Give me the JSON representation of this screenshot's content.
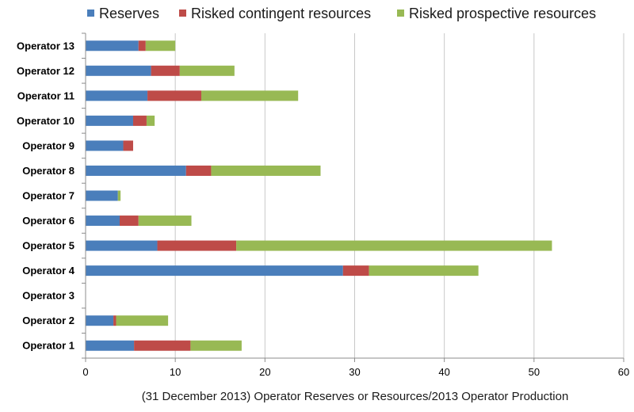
{
  "chart_data": {
    "type": "bar",
    "orientation": "horizontal",
    "stacked": true,
    "title": "",
    "xlabel": "(31 December 2013) Operator Reserves or Resources/2013 Operator Production",
    "ylabel": "",
    "xlim": [
      0,
      60
    ],
    "xticks": [
      0,
      10,
      20,
      30,
      40,
      50,
      60
    ],
    "grid": "vertical",
    "legend_position": "top",
    "categories": [
      "Operator 13",
      "Operator 12",
      "Operator 11",
      "Operator 10",
      "Operator 9",
      "Operator 8",
      "Operator 7",
      "Operator 6",
      "Operator 5",
      "Operator 4",
      "Operator 3",
      "Operator 2",
      "Operator 1"
    ],
    "series": [
      {
        "name": "Reserves",
        "color": "#4a7ebb",
        "values": [
          5.9,
          7.3,
          6.9,
          5.3,
          4.2,
          11.2,
          3.6,
          3.8,
          8.0,
          28.7,
          0,
          3.1,
          5.4
        ]
      },
      {
        "name": "Risked contingent resources",
        "color": "#be4b48",
        "values": [
          0.8,
          3.2,
          6.0,
          1.5,
          1.1,
          2.8,
          0,
          2.1,
          8.8,
          2.9,
          0,
          0.3,
          6.3
        ]
      },
      {
        "name": "Risked prospective resources",
        "color": "#98b954",
        "values": [
          3.3,
          6.1,
          10.8,
          0.9,
          0,
          12.2,
          0.3,
          5.9,
          35.2,
          12.2,
          0,
          5.8,
          5.7
        ]
      }
    ]
  }
}
